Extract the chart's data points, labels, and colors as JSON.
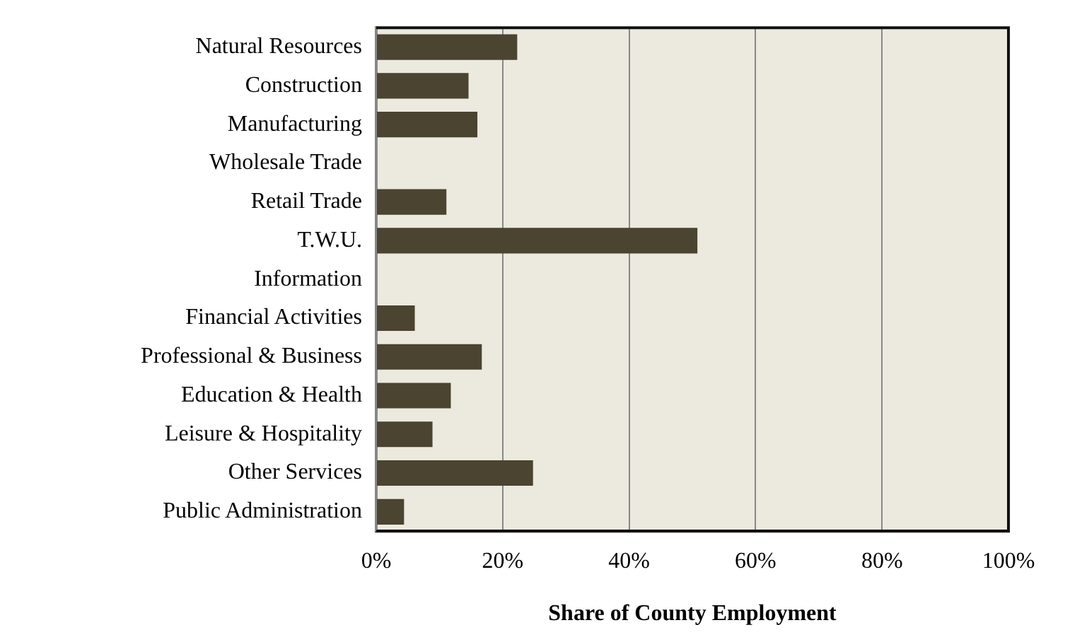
{
  "chart_data": {
    "type": "bar",
    "orientation": "horizontal",
    "xlabel": "Share of County Employment",
    "categories": [
      "Natural Resources",
      "Construction",
      "Manufacturing",
      "Wholesale Trade",
      "Retail Trade",
      "T.W.U.",
      "Information",
      "Financial Activities",
      "Professional & Business",
      "Education & Health",
      "Leisure & Hospitality",
      "Other Services",
      "Public Administration"
    ],
    "values": [
      22.3,
      14.6,
      16.0,
      0,
      11.1,
      50.8,
      0,
      6.1,
      16.7,
      11.8,
      8.9,
      24.8,
      4.4
    ],
    "color": "#4a4430",
    "xlim": [
      0,
      100
    ],
    "xticks": [
      {
        "value": 0,
        "label": "0%"
      },
      {
        "value": 20,
        "label": "20%"
      },
      {
        "value": 40,
        "label": "40%"
      },
      {
        "value": 60,
        "label": "60%"
      },
      {
        "value": 80,
        "label": "80%"
      },
      {
        "value": 100,
        "label": "100%"
      }
    ],
    "grid": "x",
    "legend": false
  }
}
